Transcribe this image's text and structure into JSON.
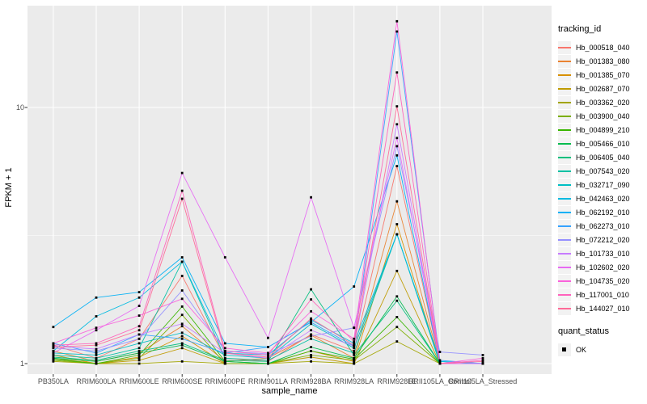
{
  "figure": {
    "background": "#FFFFFF",
    "panel_background": "#EBEBEB",
    "gridline_color": "#FFFFFF",
    "axis_text_color": "#4D4D4D",
    "point_color": "#000000"
  },
  "axes": {
    "x": {
      "title": "sample_name"
    },
    "y": {
      "title": "FPKM + 1",
      "tick_labels": [
        "10",
        "1"
      ],
      "scale": "log10"
    }
  },
  "legends": {
    "tracking": {
      "title": "tracking_id"
    },
    "quant": {
      "title": "quant_status",
      "ok_label": "OK",
      "symbol": "black-square"
    }
  },
  "chart_data": {
    "type": "line",
    "title": "",
    "xlabel": "sample_name",
    "ylabel": "FPKM + 1",
    "y_scale": "log10",
    "y_ticks": [
      1,
      10
    ],
    "y_minor_ticks": [
      3.162
    ],
    "ylim": [
      0.91,
      25
    ],
    "grid": true,
    "legend_position": "right",
    "marker": "black-square",
    "quant_status": "OK",
    "categories": [
      "PB350LA",
      "RRIM600LA",
      "RRIM600LE",
      "RRIM600SE",
      "RRIM600PE",
      "RRIM901LA",
      "RRIM928BA",
      "RRIM928LA",
      "RRIM928LE",
      "RRII105LA_Control",
      "RRII105LA_Stressed"
    ],
    "series": [
      {
        "name": "Hb_000518_040",
        "color": "#F8766D",
        "values": [
          1.18,
          1.05,
          1.25,
          2.2,
          1.05,
          1.02,
          1.3,
          1.12,
          5.9,
          1.0,
          1.0
        ]
      },
      {
        "name": "Hb_001383_080",
        "color": "#EA8331",
        "values": [
          1.12,
          1.02,
          1.1,
          1.4,
          1.02,
          1.05,
          1.29,
          1.05,
          4.3,
          1.0,
          1.0
        ]
      },
      {
        "name": "Hb_001385_070",
        "color": "#D89000",
        "values": [
          1.08,
          1.0,
          1.06,
          1.28,
          1.0,
          1.0,
          1.12,
          1.02,
          3.5,
          1.0,
          1.0
        ]
      },
      {
        "name": "Hb_002687_070",
        "color": "#C09B00",
        "values": [
          1.05,
          1.0,
          1.03,
          1.15,
          1.0,
          1.0,
          1.06,
          1.0,
          2.3,
          1.0,
          1.0
        ]
      },
      {
        "name": "Hb_003362_020",
        "color": "#A3A500",
        "values": [
          1.02,
          1.0,
          1.0,
          1.02,
          1.0,
          1.0,
          1.02,
          1.0,
          1.22,
          1.0,
          1.0
        ]
      },
      {
        "name": "Hb_003900_040",
        "color": "#7CAE00",
        "values": [
          1.03,
          1.0,
          1.05,
          1.55,
          1.0,
          1.0,
          1.08,
          1.03,
          1.39,
          1.0,
          1.0
        ]
      },
      {
        "name": "Hb_004899_210",
        "color": "#39B600",
        "values": [
          1.04,
          1.0,
          1.08,
          1.67,
          1.02,
          1.0,
          1.12,
          1.04,
          1.52,
          1.0,
          1.0
        ]
      },
      {
        "name": "Hb_005466_010",
        "color": "#00BB4E",
        "values": [
          1.05,
          1.02,
          1.1,
          1.18,
          1.02,
          1.0,
          1.16,
          1.05,
          1.83,
          1.0,
          1.0
        ]
      },
      {
        "name": "Hb_006405_040",
        "color": "#00BF7D",
        "values": [
          1.06,
          1.03,
          1.12,
          1.2,
          1.03,
          1.02,
          1.95,
          1.08,
          1.76,
          1.0,
          1.0
        ]
      },
      {
        "name": "Hb_007543_020",
        "color": "#00C1A3",
        "values": [
          1.08,
          1.05,
          1.15,
          2.5,
          1.05,
          1.03,
          1.25,
          1.1,
          3.2,
          1.0,
          1.0
        ]
      },
      {
        "name": "Hb_032717_090",
        "color": "#00BFC4",
        "values": [
          1.1,
          1.08,
          1.2,
          1.32,
          1.08,
          1.05,
          1.43,
          1.15,
          3.2,
          1.02,
          1.0
        ]
      },
      {
        "name": "Hb_042463_020",
        "color": "#00BAE0",
        "values": [
          1.12,
          1.53,
          1.81,
          2.5,
          1.1,
          1.08,
          1.48,
          1.2,
          3.2,
          1.02,
          1.0
        ]
      },
      {
        "name": "Hb_062192_010",
        "color": "#00B0F6",
        "values": [
          1.39,
          1.81,
          1.9,
          2.6,
          1.2,
          1.16,
          1.45,
          2.0,
          6.5,
          1.0,
          1.0
        ]
      },
      {
        "name": "Hb_062273_010",
        "color": "#35A2FF",
        "values": [
          1.2,
          1.1,
          1.3,
          1.25,
          1.1,
          1.16,
          1.45,
          1.17,
          19.8,
          1.03,
          1.0
        ]
      },
      {
        "name": "Hb_072212_020",
        "color": "#9590FF",
        "values": [
          1.15,
          1.12,
          1.25,
          1.93,
          1.12,
          1.09,
          1.28,
          1.38,
          7.06,
          1.11,
          1.08
        ]
      },
      {
        "name": "Hb_101733_010",
        "color": "#C77CFF",
        "values": [
          1.17,
          1.14,
          1.3,
          1.43,
          1.1,
          1.05,
          1.35,
          1.17,
          8.6,
          1.0,
          1.0
        ]
      },
      {
        "name": "Hb_102602_020",
        "color": "#E76BF3",
        "values": [
          1.1,
          1.35,
          1.68,
          5.55,
          2.6,
          1.26,
          4.46,
          1.38,
          7.6,
          1.0,
          1.0
        ]
      },
      {
        "name": "Hb_104735_020",
        "color": "#FA62DB",
        "values": [
          1.2,
          1.38,
          1.54,
          1.79,
          1.15,
          1.1,
          1.6,
          1.25,
          21.7,
          1.0,
          1.05
        ]
      },
      {
        "name": "Hb_117001_010",
        "color": "#FF62BC",
        "values": [
          1.18,
          1.2,
          1.4,
          4.73,
          1.12,
          1.08,
          1.78,
          1.22,
          13.7,
          1.0,
          1.03
        ]
      },
      {
        "name": "Hb_144027_010",
        "color": "#FF6A98",
        "values": [
          1.16,
          1.18,
          1.35,
          4.4,
          1.1,
          1.06,
          1.5,
          1.18,
          10.1,
          1.0,
          1.02
        ]
      }
    ]
  }
}
